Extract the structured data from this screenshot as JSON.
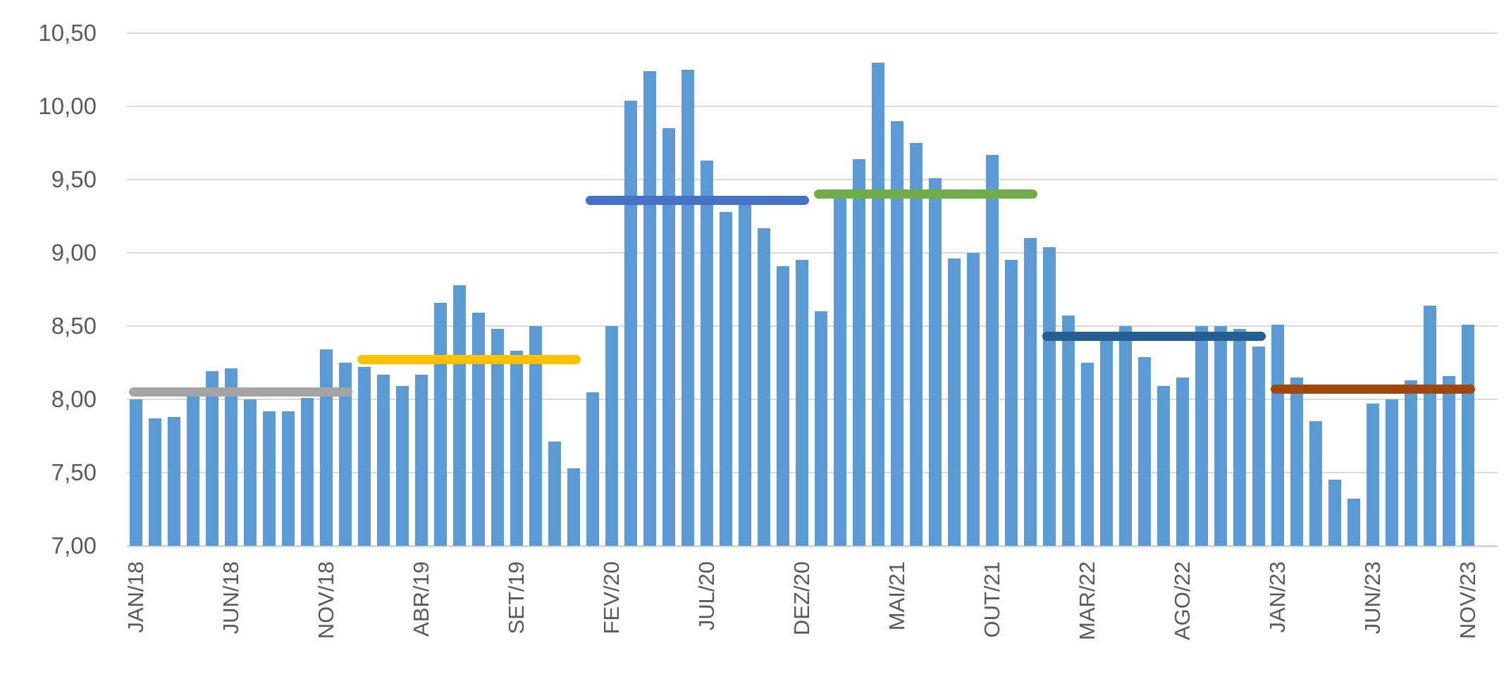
{
  "chart_data": {
    "type": "bar",
    "title": "",
    "x": [
      "JAN/18",
      "FEV/18",
      "MAR/18",
      "ABR/18",
      "MAI/18",
      "JUN/18",
      "JUL/18",
      "AGO/18",
      "SET/18",
      "OUT/18",
      "NOV/18",
      "DEZ/18",
      "JAN/19",
      "FEV/19",
      "MAR/19",
      "ABR/19",
      "MAI/19",
      "JUN/19",
      "JUL/19",
      "AGO/19",
      "SET/19",
      "OUT/19",
      "NOV/19",
      "DEZ/19",
      "JAN/20",
      "FEV/20",
      "MAR/20",
      "ABR/20",
      "MAI/20",
      "JUN/20",
      "JUL/20",
      "AGO/20",
      "SET/20",
      "OUT/20",
      "NOV/20",
      "DEZ/20",
      "JAN/21",
      "FEV/21",
      "MAR/21",
      "ABR/21",
      "MAI/21",
      "JUN/21",
      "JUL/21",
      "AGO/21",
      "SET/21",
      "OUT/21",
      "NOV/21",
      "DEZ/21",
      "JAN/22",
      "FEV/22",
      "MAR/22",
      "ABR/22",
      "MAI/22",
      "JUN/22",
      "JUL/22",
      "AGO/22",
      "SET/22",
      "OUT/22",
      "NOV/22",
      "DEZ/22",
      "JAN/23",
      "FEV/23",
      "MAR/23",
      "ABR/23",
      "MAI/23",
      "JUN/23",
      "JUL/23",
      "AGO/23",
      "SET/23",
      "OUT/23",
      "NOV/23"
    ],
    "values": [
      8.0,
      7.87,
      7.88,
      8.03,
      8.19,
      8.21,
      8.0,
      7.92,
      7.92,
      8.01,
      8.34,
      8.25,
      8.22,
      8.17,
      8.09,
      8.17,
      8.66,
      8.78,
      8.59,
      8.48,
      8.33,
      8.5,
      7.71,
      7.53,
      8.05,
      8.5,
      10.04,
      10.24,
      9.85,
      10.25,
      9.63,
      9.28,
      9.39,
      9.17,
      8.91,
      8.95,
      8.6,
      9.4,
      9.64,
      10.3,
      9.9,
      9.75,
      9.51,
      8.96,
      9.0,
      9.67,
      8.95,
      9.1,
      9.04,
      8.57,
      8.25,
      8.41,
      8.5,
      8.29,
      8.09,
      8.15,
      8.5,
      8.5,
      8.48,
      8.36,
      8.51,
      8.15,
      7.85,
      7.45,
      7.32,
      7.97,
      8.0,
      8.13,
      8.64,
      8.16,
      8.51
    ],
    "bar_color": "#5B9BD5",
    "xlabel": "",
    "ylabel": "",
    "x_tick_labels": [
      "JAN/18",
      "JUN/18",
      "NOV/18",
      "ABR/19",
      "SET/19",
      "FEV/20",
      "JUL/20",
      "DEZ/20",
      "MAI/21",
      "OUT/21",
      "MAR/22",
      "AGO/22",
      "JAN/23",
      "JUN/23",
      "NOV/23"
    ],
    "x_tick_every": 5,
    "ylim": [
      7.0,
      10.5
    ],
    "ytick_step": 0.5,
    "y_tick_labels": [
      "7,00",
      "7,50",
      "8,00",
      "8,50",
      "9,00",
      "9,50",
      "10,00",
      "10,50"
    ],
    "grid": true,
    "legend": "none",
    "gridline_color": "#D9D9D9",
    "axis_line_color": "#D6D6D6",
    "axis_text_color": "#595959",
    "average_lines": [
      {
        "name": "media-2018",
        "value": 8.05,
        "from": "JAN/18",
        "to": "DEZ/18",
        "color": "#A5A5A5"
      },
      {
        "name": "media-2019",
        "value": 8.27,
        "from": "JAN/19",
        "to": "DEZ/19",
        "color": "#FFC000"
      },
      {
        "name": "media-2020",
        "value": 9.36,
        "from": "JAN/20",
        "to": "DEZ/20",
        "color": "#4472C4"
      },
      {
        "name": "media-2021",
        "value": 9.4,
        "from": "JAN/21",
        "to": "DEZ/21",
        "color": "#70AD47"
      },
      {
        "name": "media-2022",
        "value": 8.43,
        "from": "JAN/22",
        "to": "DEZ/22",
        "color": "#255E91"
      },
      {
        "name": "media-2023",
        "value": 8.07,
        "from": "JAN/23",
        "to": "NOV/23",
        "color": "#9E480E"
      }
    ]
  }
}
